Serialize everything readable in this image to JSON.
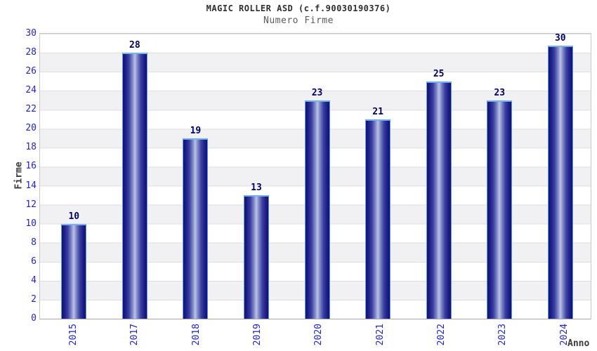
{
  "title": "MAGIC ROLLER ASD (c.f.90030190376)",
  "subtitle": "Numero Firme",
  "chart_data": {
    "type": "bar",
    "title": "MAGIC ROLLER ASD (c.f.90030190376)",
    "subtitle": "Numero Firme",
    "categories": [
      "2015",
      "2017",
      "2018",
      "2019",
      "2020",
      "2021",
      "2022",
      "2023",
      "2024"
    ],
    "values": [
      10,
      28,
      19,
      13,
      23,
      21,
      25,
      23,
      30
    ],
    "xlabel": "Anno",
    "ylabel": "Firme",
    "ylim": [
      0,
      30
    ],
    "ytick_step": 2,
    "yticks": [
      0,
      2,
      4,
      6,
      8,
      10,
      12,
      14,
      16,
      18,
      20,
      22,
      24,
      26,
      28,
      30
    ],
    "grid": "horizontal alternating shaded bands every 2 units",
    "legend_position": "none",
    "bar_labels_shown": true,
    "x_tick_rotation_degrees": 90,
    "missing_years": [
      "2016"
    ]
  },
  "colors": {
    "background": "#ffffff",
    "band_stripe": "#f1f1f4",
    "grid_line": "#dedee1",
    "plot_border": "#c9c9c9",
    "axis_line_bottom": "#a9a9a9",
    "tick_label_color": "#2323cc",
    "bar_value_color": "#000066",
    "title_color": "#2e2e2e",
    "subtitle_color": "#5a5a5a",
    "axis_title_color": "#3a3a3a",
    "bar_dark": "#12126e",
    "bar_mid": "#3a3fa0",
    "bar_light": "#bcc2e8",
    "bar_outline": "#5e9ae6",
    "bar_top_highlight": "#74b1f2"
  }
}
